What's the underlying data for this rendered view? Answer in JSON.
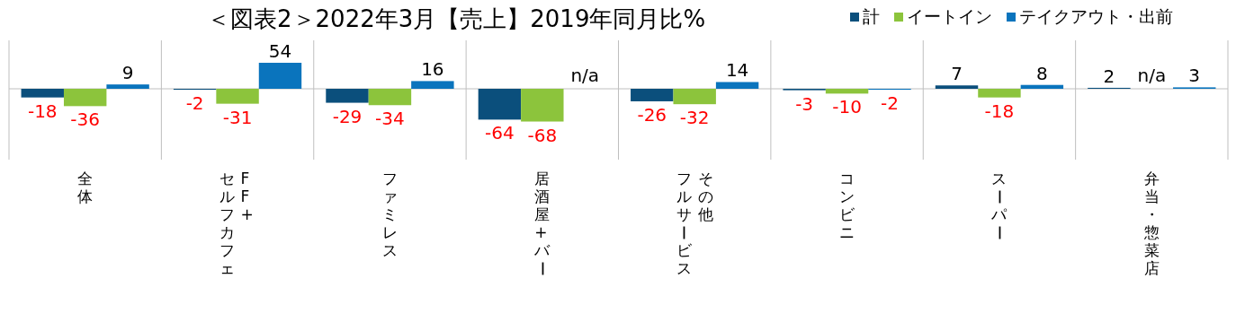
{
  "chart_data": {
    "type": "bar",
    "title": "＜図表2＞2022年3月【売上】2019年同月比%",
    "categories": [
      "全体",
      "FF+セルフカフェ",
      "ファミレス",
      "居酒屋+バー",
      "その他フルサービス",
      "コンビニ",
      "スーパー",
      "弁当・惣菜店"
    ],
    "series": [
      {
        "name": "計",
        "color": "#0b4f7c",
        "values": [
          -18,
          -2,
          -29,
          -64,
          -26,
          -3,
          7,
          2
        ],
        "value_labels": [
          "-18",
          "-2",
          "-29",
          "-64",
          "-26",
          "-3",
          "7",
          "2"
        ]
      },
      {
        "name": "イートイン",
        "color": "#8cc43c",
        "values": [
          -36,
          -31,
          -34,
          -68,
          -32,
          -10,
          -18,
          null
        ],
        "value_labels": [
          "-36",
          "-31",
          "-34",
          "-68",
          "-32",
          "-10",
          "-18",
          "n/a"
        ]
      },
      {
        "name": "テイクアウト・出前",
        "color": "#0a74bd",
        "values": [
          9,
          54,
          16,
          null,
          14,
          -2,
          8,
          3
        ],
        "value_labels": [
          "9",
          "54",
          "16",
          "n/a",
          "14",
          "-2",
          "8",
          "3"
        ]
      }
    ],
    "legend": "top right",
    "grid": "x"
  }
}
